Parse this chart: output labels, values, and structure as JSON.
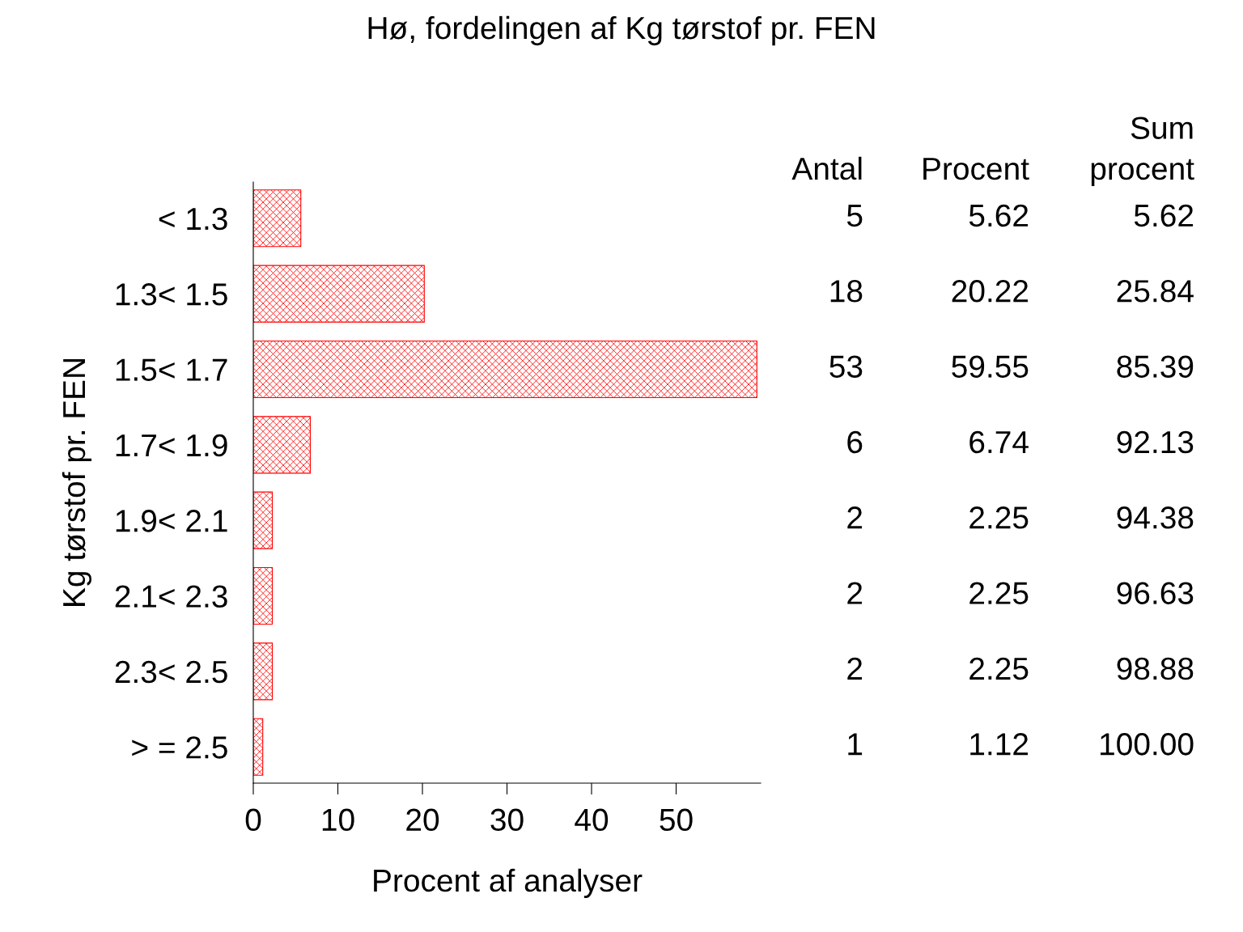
{
  "chart_data": {
    "type": "bar",
    "orientation": "horizontal",
    "title": "Hø, fordelingen af Kg tørstof pr. FEN",
    "xlabel": "Procent af analyser",
    "ylabel": "Kg tørstof pr. FEN",
    "categories": [
      "< 1.3",
      "1.3< 1.5",
      "1.5< 1.7",
      "1.7< 1.9",
      "1.9< 2.1",
      "2.1< 2.3",
      "2.3< 2.5",
      "> = 2.5"
    ],
    "values": [
      5.62,
      20.22,
      59.55,
      6.74,
      2.25,
      2.25,
      2.25,
      1.12
    ],
    "value_labels": [
      "5.62",
      "20.22",
      "59.55",
      "6.74",
      "2.25",
      "2.25",
      "2.25",
      "1.12"
    ],
    "color": "#ff0000",
    "xlim": [
      0,
      60
    ],
    "xticks": [
      0,
      10,
      20,
      30,
      40,
      50
    ],
    "grid": false,
    "legend": false,
    "annotations": [
      "Antal",
      "Procent",
      "Sum\nprocent",
      "5",
      "18",
      "53",
      "6",
      "2",
      "2",
      "2",
      "1",
      "5.62",
      "25.84",
      "85.39",
      "92.13",
      "94.38",
      "96.63",
      "98.88",
      "100.00"
    ]
  }
}
